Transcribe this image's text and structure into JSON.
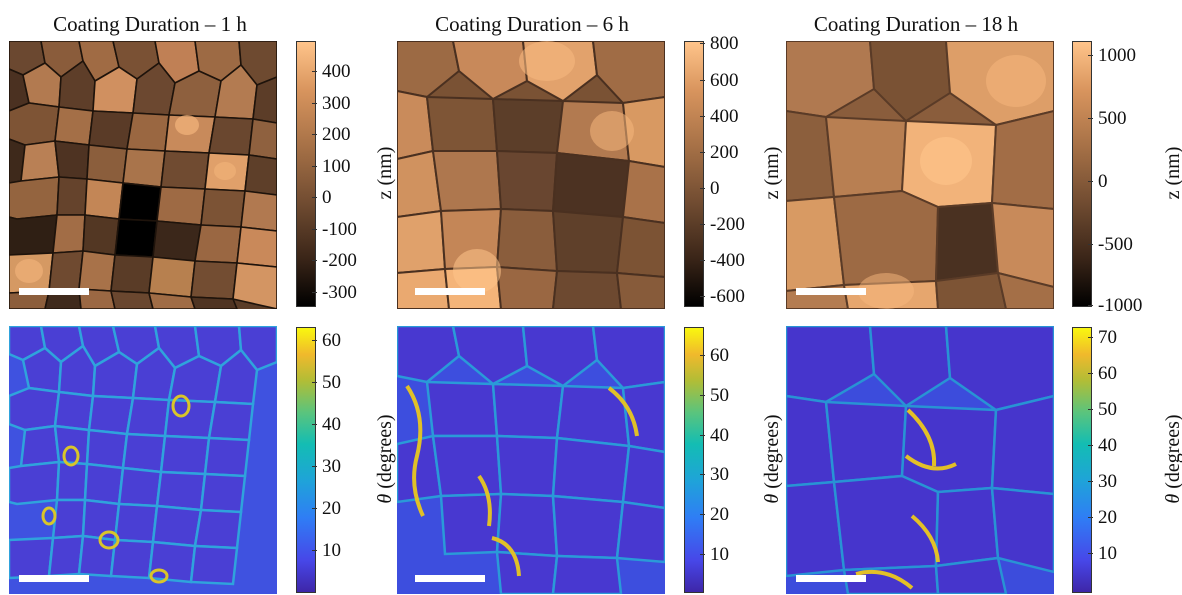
{
  "panels": [
    {
      "title": "Coating Duration – 1 h",
      "height_colorbar": {
        "label": "z (nm)",
        "ticks": [
          "400",
          "300",
          "200",
          "100",
          "0",
          "-100",
          "-200",
          "-300"
        ],
        "range": [
          -350,
          480
        ]
      },
      "angle_colorbar": {
        "label_symbol": "θ",
        "label_text": " (degrees)",
        "ticks": [
          "60",
          "50",
          "40",
          "30",
          "20",
          "10"
        ],
        "range": [
          0,
          63
        ]
      }
    },
    {
      "title": "Coating Duration – 6 h",
      "height_colorbar": {
        "label": "z (nm)",
        "ticks": [
          "800",
          "600",
          "400",
          "200",
          "0",
          "-200",
          "-400",
          "-600"
        ],
        "range": [
          -680,
          800
        ]
      },
      "angle_colorbar": {
        "label_symbol": "θ",
        "label_text": " (degrees)",
        "ticks": [
          "60",
          "50",
          "40",
          "30",
          "20",
          "10"
        ],
        "range": [
          0,
          67
        ]
      }
    },
    {
      "title": "Coating Duration – 18 h",
      "height_colorbar": {
        "label": "z (nm)",
        "ticks": [
          "1000",
          "500",
          "0",
          "-500",
          "-1000"
        ],
        "range": [
          -1000,
          1100
        ]
      },
      "angle_colorbar": {
        "label_symbol": "θ",
        "label_text": " (degrees)",
        "ticks": [
          "70",
          "60",
          "50",
          "40",
          "30",
          "20",
          "10"
        ],
        "range": [
          0,
          73
        ]
      }
    }
  ],
  "colors": {
    "height_low": "#000000",
    "height_high": "#ffc48a",
    "angle_low": "#3e26a8",
    "angle_high": "#f9f70f",
    "scalebar": "#ffffff"
  }
}
